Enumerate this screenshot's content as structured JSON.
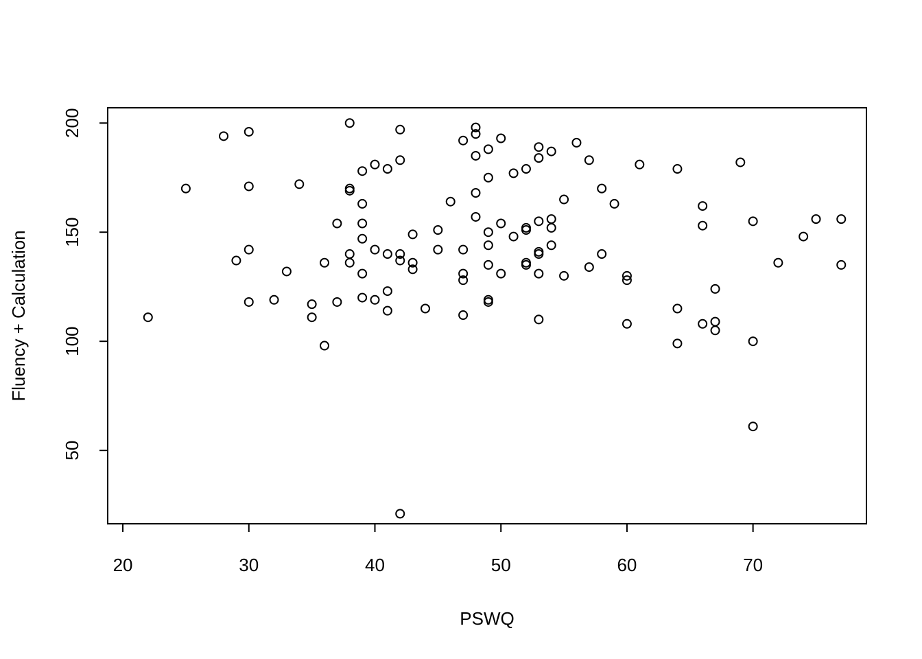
{
  "chart_data": {
    "type": "scatter",
    "title": "",
    "xlabel": "PSWQ",
    "ylabel": "Fluency + Calculation",
    "xlim": [
      18.8,
      79
    ],
    "ylim": [
      16.4,
      207
    ],
    "x_ticks": [
      20,
      30,
      40,
      50,
      60,
      70
    ],
    "x_tick_labels": [
      "20",
      "30",
      "40",
      "50",
      "60",
      "70"
    ],
    "y_ticks": [
      50,
      100,
      150,
      200
    ],
    "y_tick_labels": [
      "50",
      "100",
      "150",
      "200"
    ],
    "grid": false,
    "legend": "none",
    "marker": "open-circle",
    "colors": {
      "marker": "#000000",
      "axis": "#000000",
      "background": "#ffffff"
    },
    "points": [
      [
        22,
        111
      ],
      [
        25,
        170
      ],
      [
        28,
        194
      ],
      [
        29,
        137
      ],
      [
        30,
        196
      ],
      [
        30,
        171
      ],
      [
        30,
        142
      ],
      [
        30,
        118
      ],
      [
        32,
        119
      ],
      [
        33,
        132
      ],
      [
        34,
        172
      ],
      [
        35,
        117
      ],
      [
        35,
        111
      ],
      [
        36,
        136
      ],
      [
        36,
        98
      ],
      [
        37,
        154
      ],
      [
        37,
        118
      ],
      [
        38,
        200
      ],
      [
        38,
        170
      ],
      [
        38,
        169
      ],
      [
        38,
        140
      ],
      [
        38,
        136
      ],
      [
        39,
        178
      ],
      [
        39,
        163
      ],
      [
        39,
        154
      ],
      [
        39,
        147
      ],
      [
        39,
        131
      ],
      [
        39,
        120
      ],
      [
        40,
        181
      ],
      [
        40,
        142
      ],
      [
        40,
        119
      ],
      [
        41,
        179
      ],
      [
        41,
        140
      ],
      [
        41,
        123
      ],
      [
        41,
        114
      ],
      [
        42,
        197
      ],
      [
        42,
        183
      ],
      [
        42,
        140
      ],
      [
        42,
        137
      ],
      [
        42,
        21
      ],
      [
        43,
        149
      ],
      [
        43,
        136
      ],
      [
        43,
        133
      ],
      [
        44,
        115
      ],
      [
        45,
        151
      ],
      [
        45,
        142
      ],
      [
        46,
        164
      ],
      [
        47,
        192
      ],
      [
        47,
        142
      ],
      [
        47,
        131
      ],
      [
        47,
        128
      ],
      [
        47,
        112
      ],
      [
        48,
        198
      ],
      [
        48,
        195
      ],
      [
        48,
        185
      ],
      [
        48,
        168
      ],
      [
        48,
        157
      ],
      [
        49,
        188
      ],
      [
        49,
        175
      ],
      [
        49,
        150
      ],
      [
        49,
        144
      ],
      [
        49,
        135
      ],
      [
        49,
        119
      ],
      [
        49,
        118
      ],
      [
        50,
        193
      ],
      [
        50,
        154
      ],
      [
        50,
        131
      ],
      [
        51,
        177
      ],
      [
        51,
        148
      ],
      [
        52,
        179
      ],
      [
        52,
        152
      ],
      [
        52,
        151
      ],
      [
        52,
        136
      ],
      [
        52,
        135
      ],
      [
        53,
        189
      ],
      [
        53,
        184
      ],
      [
        53,
        155
      ],
      [
        53,
        141
      ],
      [
        53,
        140
      ],
      [
        53,
        131
      ],
      [
        53,
        110
      ],
      [
        54,
        187
      ],
      [
        54,
        156
      ],
      [
        54,
        152
      ],
      [
        54,
        144
      ],
      [
        55,
        165
      ],
      [
        55,
        130
      ],
      [
        56,
        191
      ],
      [
        57,
        183
      ],
      [
        57,
        134
      ],
      [
        58,
        170
      ],
      [
        58,
        140
      ],
      [
        59,
        163
      ],
      [
        60,
        130
      ],
      [
        60,
        128
      ],
      [
        60,
        108
      ],
      [
        61,
        181
      ],
      [
        64,
        179
      ],
      [
        64,
        115
      ],
      [
        64,
        99
      ],
      [
        66,
        162
      ],
      [
        66,
        153
      ],
      [
        66,
        108
      ],
      [
        67,
        124
      ],
      [
        67,
        109
      ],
      [
        67,
        105
      ],
      [
        69,
        182
      ],
      [
        70,
        155
      ],
      [
        70,
        100
      ],
      [
        70,
        61
      ],
      [
        72,
        136
      ],
      [
        74,
        148
      ],
      [
        75,
        156
      ],
      [
        77,
        156
      ],
      [
        77,
        135
      ]
    ]
  }
}
